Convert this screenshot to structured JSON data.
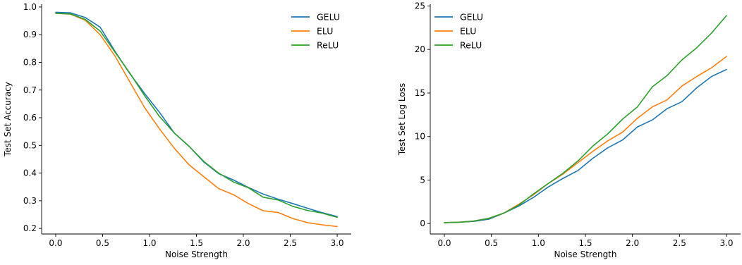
{
  "chart_data": [
    {
      "type": "line",
      "xlabel": "Noise Strength",
      "ylabel": "Test Set Accuracy",
      "xlim": [
        -0.15,
        3.15
      ],
      "ylim": [
        0.18,
        1.01
      ],
      "xticks": [
        0.0,
        0.5,
        1.0,
        1.5,
        2.0,
        2.5,
        3.0
      ],
      "xtick_labels": [
        "0.0",
        "0.5",
        "1.0",
        "1.5",
        "2.0",
        "2.5",
        "3.0"
      ],
      "yticks": [
        0.2,
        0.3,
        0.4,
        0.5,
        0.6,
        0.7,
        0.8,
        0.9,
        1.0
      ],
      "ytick_labels": [
        "0.2",
        "0.3",
        "0.4",
        "0.5",
        "0.6",
        "0.7",
        "0.8",
        "0.9",
        "1.0"
      ],
      "grid": false,
      "legend_position": "top-right",
      "x": [
        0.0,
        0.158,
        0.316,
        0.474,
        0.632,
        0.789,
        0.947,
        1.105,
        1.263,
        1.421,
        1.579,
        1.737,
        1.895,
        2.053,
        2.211,
        2.368,
        2.526,
        2.684,
        2.842,
        3.0
      ],
      "series": [
        {
          "name": "GELU",
          "color": "#1f77b4",
          "values": [
            0.981,
            0.979,
            0.962,
            0.927,
            0.84,
            0.76,
            0.688,
            0.62,
            0.545,
            0.497,
            0.44,
            0.398,
            0.375,
            0.348,
            0.324,
            0.306,
            0.29,
            0.273,
            0.257,
            0.243
          ]
        },
        {
          "name": "ELU",
          "color": "#ff7f0e",
          "values": [
            0.977,
            0.974,
            0.952,
            0.9,
            0.823,
            0.73,
            0.637,
            0.56,
            0.49,
            0.43,
            0.387,
            0.344,
            0.322,
            0.29,
            0.264,
            0.258,
            0.236,
            0.221,
            0.213,
            0.207
          ]
        },
        {
          "name": "ReLU",
          "color": "#2ca02c",
          "values": [
            0.977,
            0.975,
            0.955,
            0.913,
            0.837,
            0.762,
            0.68,
            0.605,
            0.545,
            0.497,
            0.442,
            0.4,
            0.368,
            0.347,
            0.313,
            0.303,
            0.28,
            0.265,
            0.255,
            0.24
          ]
        }
      ]
    },
    {
      "type": "line",
      "xlabel": "Noise Strength",
      "ylabel": "Test Set Log Loss",
      "xlim": [
        -0.15,
        3.15
      ],
      "ylim": [
        -1.2,
        25.2
      ],
      "xticks": [
        0.0,
        0.5,
        1.0,
        1.5,
        2.0,
        2.5,
        3.0
      ],
      "xtick_labels": [
        "0.0",
        "0.5",
        "1.0",
        "1.5",
        "2.0",
        "2.5",
        "3.0"
      ],
      "yticks": [
        0,
        5,
        10,
        15,
        20,
        25
      ],
      "ytick_labels": [
        "0",
        "5",
        "10",
        "15",
        "20",
        "25"
      ],
      "grid": false,
      "legend_position": "top-left",
      "x": [
        0.0,
        0.158,
        0.316,
        0.474,
        0.632,
        0.789,
        0.947,
        1.105,
        1.263,
        1.421,
        1.579,
        1.737,
        1.895,
        2.053,
        2.211,
        2.368,
        2.526,
        2.684,
        2.842,
        3.0
      ],
      "series": [
        {
          "name": "GELU",
          "color": "#1f77b4",
          "values": [
            0.1,
            0.15,
            0.25,
            0.5,
            1.2,
            2.0,
            3.0,
            4.2,
            5.2,
            6.1,
            7.5,
            8.7,
            9.6,
            11.1,
            11.9,
            13.2,
            14.0,
            15.6,
            16.9,
            17.7
          ]
        },
        {
          "name": "ELU",
          "color": "#ff7f0e",
          "values": [
            0.1,
            0.15,
            0.3,
            0.6,
            1.2,
            2.2,
            3.3,
            4.6,
            5.7,
            7.0,
            8.3,
            9.5,
            10.5,
            12.1,
            13.4,
            14.2,
            15.8,
            16.9,
            17.9,
            19.2
          ]
        },
        {
          "name": "ReLU",
          "color": "#2ca02c",
          "values": [
            0.1,
            0.15,
            0.3,
            0.6,
            1.2,
            2.1,
            3.4,
            4.6,
            5.8,
            7.2,
            8.9,
            10.3,
            12.0,
            13.4,
            15.7,
            17.0,
            18.8,
            20.2,
            21.9,
            23.9
          ]
        }
      ]
    }
  ]
}
